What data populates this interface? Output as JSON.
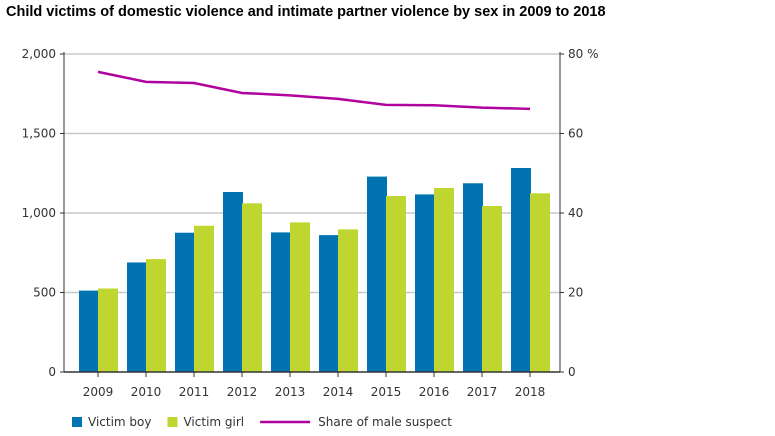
{
  "chart_data": {
    "type": "bar",
    "title": "Child victims of domestic violence and intimate partner violence by sex in 2009 to 2018",
    "categories": [
      "2009",
      "2010",
      "2011",
      "2012",
      "2013",
      "2014",
      "2015",
      "2016",
      "2017",
      "2018"
    ],
    "series": [
      {
        "name": "Victim boy",
        "type": "bar",
        "axis": "left",
        "color": "#0073b0",
        "values": [
          512,
          689,
          876,
          1132,
          878,
          861,
          1229,
          1117,
          1187,
          1283
        ]
      },
      {
        "name": "Victim girl",
        "type": "bar",
        "axis": "left",
        "color": "#bfd630",
        "values": [
          525,
          710,
          920,
          1061,
          941,
          897,
          1107,
          1157,
          1044,
          1124
        ]
      },
      {
        "name": "Share of male suspect",
        "type": "line",
        "axis": "right",
        "color": "#b0009e",
        "values": [
          75.5,
          73.0,
          72.7,
          70.2,
          69.6,
          68.7,
          67.2,
          67.1,
          66.5,
          66.2
        ]
      }
    ],
    "ylim": [
      0,
      2000
    ],
    "yticks": [
      "0",
      "500",
      "1,000",
      "1,500",
      "2,000"
    ],
    "y2lim": [
      0,
      80
    ],
    "y2ticks": [
      "0",
      "20",
      "40",
      "60",
      "80 %"
    ],
    "grid": true,
    "legend": "bottom-left"
  }
}
